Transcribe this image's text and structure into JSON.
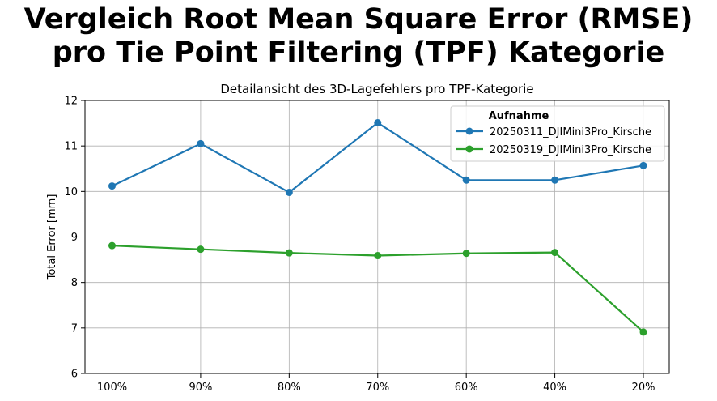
{
  "chart_data": {
    "type": "line",
    "title": "Vergleich Root Mean Square Error (RMSE)\npro Tie Point Filtering (TPF) Kategorie",
    "title_lines": [
      "Vergleich Root Mean Square Error (RMSE)",
      "pro Tie Point Filtering (TPF) Kategorie"
    ],
    "subtitle": "Detailansicht des 3D-Lagefehlers pro TPF-Kategorie",
    "xlabel": "",
    "ylabel": "Total Error [mm]",
    "categories": [
      "100%",
      "90%",
      "80%",
      "70%",
      "60%",
      "40%",
      "20%"
    ],
    "ylim": [
      6,
      12
    ],
    "yticks": [
      6,
      7,
      8,
      9,
      10,
      11,
      12
    ],
    "grid": true,
    "legend": {
      "title": "Aufnahme",
      "placement": "top-right"
    },
    "series": [
      {
        "name": "20250311_DJIMini3Pro_Kirsche",
        "color": "#1f77b4",
        "values": [
          10.12,
          11.05,
          9.98,
          11.51,
          10.25,
          10.25,
          10.57
        ]
      },
      {
        "name": "20250319_DJIMini3Pro_Kirsche",
        "color": "#2ca02c",
        "values": [
          8.81,
          8.73,
          8.65,
          8.59,
          8.64,
          8.66,
          6.91
        ]
      }
    ]
  }
}
